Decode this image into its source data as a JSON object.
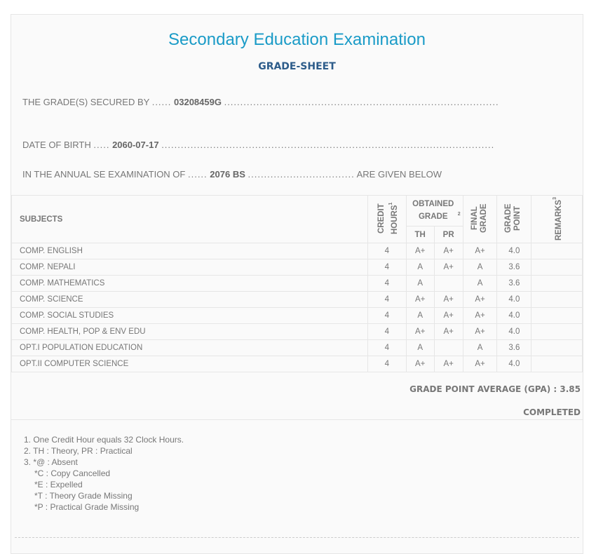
{
  "header": {
    "title": "Secondary Education Examination",
    "subtitle": "GRADE-SHEET"
  },
  "info": {
    "secured_label": "THE GRADE(S) SECURED BY",
    "symbol_no": "03208459G",
    "dob_label": "DATE OF BIRTH",
    "dob": "2060-07-17",
    "exam_label": "IN THE ANNUAL SE EXAMINATION OF",
    "exam_year": "2076 BS",
    "exam_suffix": "ARE GIVEN BELOW"
  },
  "table": {
    "headers": {
      "subjects": "SUBJECTS",
      "credit": "CREDIT HOURS",
      "credit_sup": "1",
      "obtained": "OBTAINED GRADE",
      "obtained_sup": "2",
      "th": "TH",
      "pr": "PR",
      "final": "FINAL GRADE",
      "gp": "GRADE POINT",
      "remarks": "REMARKS",
      "remarks_sup": "3"
    },
    "rows": [
      {
        "subject": "COMP. ENGLISH",
        "credit": "4",
        "th": "A+",
        "pr": "A+",
        "final": "A+",
        "gp": "4.0",
        "remarks": ""
      },
      {
        "subject": "COMP. NEPALI",
        "credit": "4",
        "th": "A",
        "pr": "A+",
        "final": "A",
        "gp": "3.6",
        "remarks": ""
      },
      {
        "subject": "COMP. MATHEMATICS",
        "credit": "4",
        "th": "A",
        "pr": "",
        "final": "A",
        "gp": "3.6",
        "remarks": ""
      },
      {
        "subject": "COMP. SCIENCE",
        "credit": "4",
        "th": "A+",
        "pr": "A+",
        "final": "A+",
        "gp": "4.0",
        "remarks": ""
      },
      {
        "subject": "COMP. SOCIAL STUDIES",
        "credit": "4",
        "th": "A",
        "pr": "A+",
        "final": "A+",
        "gp": "4.0",
        "remarks": ""
      },
      {
        "subject": "COMP. HEALTH, POP & ENV EDU",
        "credit": "4",
        "th": "A+",
        "pr": "A+",
        "final": "A+",
        "gp": "4.0",
        "remarks": ""
      },
      {
        "subject": "OPT.I POPULATION EDUCATION",
        "credit": "4",
        "th": "A",
        "pr": "",
        "final": "A",
        "gp": "3.6",
        "remarks": ""
      },
      {
        "subject": "OPT.II COMPUTER SCIENCE",
        "credit": "4",
        "th": "A+",
        "pr": "A+",
        "final": "A+",
        "gp": "4.0",
        "remarks": ""
      }
    ]
  },
  "gpa": "GRADE POINT AVERAGE (GPA) : 3.85",
  "status": "COMPLETED",
  "notes": [
    "1. One Credit Hour equals 32 Clock Hours.",
    "2. TH : Theory, PR : Practical",
    "3. *@ : Absent",
    "*C : Copy Cancelled",
    "*E : Expelled",
    "*T : Theory Grade Missing",
    "*P : Practical Grade Missing"
  ]
}
